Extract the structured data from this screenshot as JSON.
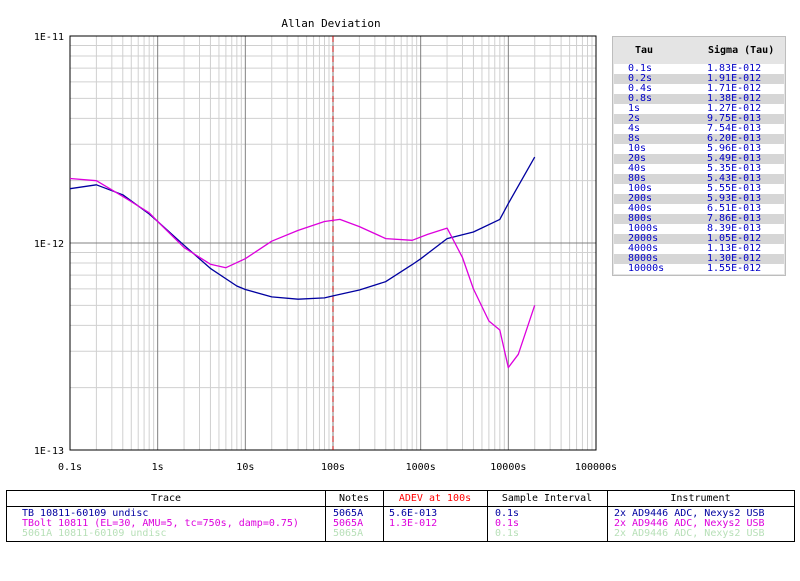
{
  "colors": {
    "background": "#ffffff",
    "grid_major": "#808080",
    "grid_minor": "#d0d0d0",
    "series_1": "#0000a0",
    "series_2": "#dd00dd",
    "series_3": "#b8e0b8",
    "marker_line": "#c00000",
    "adev_header": "#ff0000"
  },
  "chart_data": {
    "type": "line",
    "title": "Allan Deviation",
    "x_scale": "log",
    "y_scale": "log",
    "xlim": [
      0.1,
      100000
    ],
    "ylim": [
      1e-13,
      1e-11
    ],
    "grid": true,
    "x_tick_labels": [
      "0.1s",
      "1s",
      "10s",
      "100s",
      "1000s",
      "10000s",
      "100000s"
    ],
    "y_tick_labels": [
      "1E-11",
      "1E-12",
      "1E-13"
    ],
    "vertical_marker": {
      "x": 100,
      "style": "dashed"
    },
    "series": [
      {
        "name": "TB 10811-60109 undisc",
        "color": "#0000a0",
        "x": [
          0.1,
          0.2,
          0.4,
          0.8,
          1,
          2,
          4,
          8,
          10,
          20,
          40,
          80,
          100,
          200,
          400,
          800,
          1000,
          2000,
          4000,
          8000,
          10000,
          20000
        ],
        "y": [
          1.83e-12,
          1.91e-12,
          1.71e-12,
          1.38e-12,
          1.27e-12,
          9.75e-13,
          7.54e-13,
          6.2e-13,
          5.96e-13,
          5.49e-13,
          5.35e-13,
          5.43e-13,
          5.55e-13,
          5.93e-13,
          6.51e-13,
          7.86e-13,
          8.39e-13,
          1.05e-12,
          1.13e-12,
          1.3e-12,
          1.55e-12,
          2.6e-12
        ]
      },
      {
        "name": "TBolt 10811 (EL=30, AMU=5, tc=750s, damp=0.75)",
        "color": "#dd00dd",
        "x": [
          0.1,
          0.2,
          0.4,
          0.8,
          1,
          2,
          4,
          6,
          10,
          20,
          40,
          80,
          120,
          200,
          400,
          800,
          1200,
          2000,
          3000,
          4000,
          6000,
          8000,
          10000,
          13000,
          20000
        ],
        "y": [
          2.05e-12,
          2e-12,
          1.68e-12,
          1.4e-12,
          1.27e-12,
          9.5e-13,
          7.9e-13,
          7.6e-13,
          8.4e-13,
          1.02e-12,
          1.15e-12,
          1.27e-12,
          1.3e-12,
          1.2e-12,
          1.05e-12,
          1.03e-12,
          1.1e-12,
          1.18e-12,
          8.5e-13,
          6e-13,
          4.2e-13,
          3.8e-13,
          2.5e-13,
          2.9e-13,
          5e-13
        ]
      }
    ]
  },
  "tau_table": {
    "header_tau": "Tau",
    "header_sigma": "Sigma (Tau)",
    "rows": [
      {
        "tau": "0.1s",
        "sigma": "1.83E-012"
      },
      {
        "tau": "0.2s",
        "sigma": "1.91E-012"
      },
      {
        "tau": "0.4s",
        "sigma": "1.71E-012"
      },
      {
        "tau": "0.8s",
        "sigma": "1.38E-012"
      },
      {
        "tau": "1s",
        "sigma": "1.27E-012"
      },
      {
        "tau": "2s",
        "sigma": "9.75E-013"
      },
      {
        "tau": "4s",
        "sigma": "7.54E-013"
      },
      {
        "tau": "8s",
        "sigma": "6.20E-013"
      },
      {
        "tau": "10s",
        "sigma": "5.96E-013"
      },
      {
        "tau": "20s",
        "sigma": "5.49E-013"
      },
      {
        "tau": "40s",
        "sigma": "5.35E-013"
      },
      {
        "tau": "80s",
        "sigma": "5.43E-013"
      },
      {
        "tau": "100s",
        "sigma": "5.55E-013"
      },
      {
        "tau": "200s",
        "sigma": "5.93E-013"
      },
      {
        "tau": "400s",
        "sigma": "6.51E-013"
      },
      {
        "tau": "800s",
        "sigma": "7.86E-013"
      },
      {
        "tau": "1000s",
        "sigma": "8.39E-013"
      },
      {
        "tau": "2000s",
        "sigma": "1.05E-012"
      },
      {
        "tau": "4000s",
        "sigma": "1.13E-012"
      },
      {
        "tau": "8000s",
        "sigma": "1.30E-012"
      },
      {
        "tau": "10000s",
        "sigma": "1.55E-012"
      }
    ]
  },
  "legend_table": {
    "headers": {
      "trace": "Trace",
      "notes": "Notes",
      "adev": "ADEV at 100s",
      "interval": "Sample Interval",
      "instrument": "Instrument"
    },
    "rows": [
      {
        "trace": "TB 10811-60109 undisc",
        "notes": "5065A",
        "adev": "5.6E-013",
        "interval": "0.1s",
        "instrument": "2x AD9446 ADC, Nexys2 USB",
        "color": "#0000a0"
      },
      {
        "trace": "TBolt 10811 (EL=30, AMU=5, tc=750s, damp=0.75)",
        "notes": "5065A",
        "adev": "1.3E-012",
        "interval": "0.1s",
        "instrument": "2x AD9446 ADC, Nexys2 USB",
        "color": "#dd00dd"
      },
      {
        "trace": "5061A 10811-60109 undisc",
        "notes": "5065A",
        "adev": "",
        "interval": "0.1s",
        "instrument": "2x AD9446 ADC, Nexys2 USB",
        "color": "#b8e0b8"
      }
    ]
  }
}
